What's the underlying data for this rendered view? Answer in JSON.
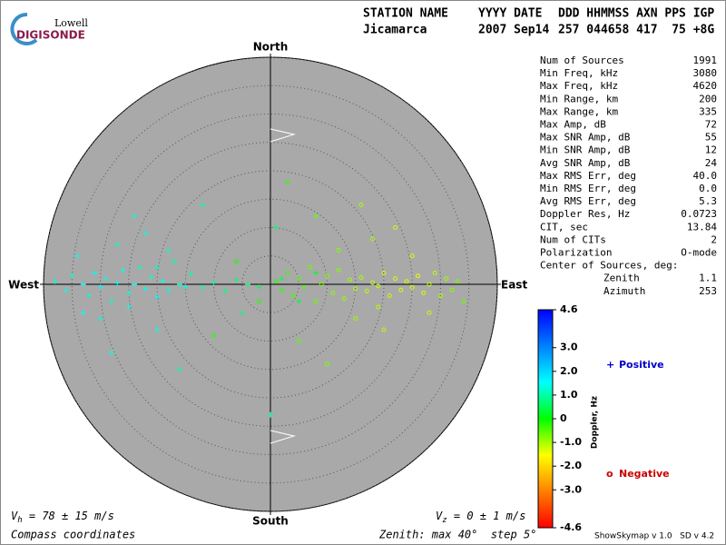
{
  "logo": {
    "top": "Lowell",
    "bottom": "DIGISONDE"
  },
  "header": {
    "labels": [
      "STATION NAME",
      "YYYY DATE",
      "DDD HHMMSS AXN PPS IGP"
    ],
    "values": [
      "Jicamarca",
      "2007 Sep14",
      "257 044658 417  75 +8G"
    ]
  },
  "stats": [
    {
      "label": "Num of Sources",
      "value": "1991"
    },
    {
      "label": "Min Freq, kHz",
      "value": "3080"
    },
    {
      "label": "Max Freq, kHz",
      "value": "4620"
    },
    {
      "label": "Min Range, km",
      "value": "200"
    },
    {
      "label": "Max Range, km",
      "value": "335"
    },
    {
      "label": "Max Amp, dB",
      "value": "72"
    },
    {
      "label": "Max SNR Amp, dB",
      "value": "55"
    },
    {
      "label": "Min SNR Amp, dB",
      "value": "12"
    },
    {
      "label": "Avg SNR Amp, dB",
      "value": "24"
    },
    {
      "label": "Max RMS Err, deg",
      "value": "40.0"
    },
    {
      "label": "Min RMS Err, deg",
      "value": "0.0"
    },
    {
      "label": "Avg RMS Err, deg",
      "value": "5.3"
    },
    {
      "label": "Doppler Res, Hz",
      "value": "0.0723"
    },
    {
      "label": "CIT, sec",
      "value": "13.84"
    },
    {
      "label": "Num of CITs",
      "value": "2"
    },
    {
      "label": "Polarization",
      "value": "O-mode"
    },
    {
      "label": "Center of Sources, deg:"
    },
    {
      "label": "Zenith",
      "value": "1.1",
      "indent": true
    },
    {
      "label": "Azimuth",
      "value": "253",
      "indent": true
    }
  ],
  "footer": {
    "vh": {
      "symbol": "V",
      "sub": "h",
      "text": " = 78 ± 15 m/s"
    },
    "vz": {
      "symbol": "V",
      "sub": "z",
      "text": " = 0 ± 1 m/s"
    },
    "coords": "Compass coordinates",
    "zenith": "Zenith: max 40°  step 5°",
    "version": "ShowSkymap v 1.0   SD v 4.2"
  },
  "chart_data": {
    "type": "scatter",
    "compass": {
      "north": "North",
      "south": "South",
      "east": "East",
      "west": "West"
    },
    "rlim": [
      0,
      40
    ],
    "rticks": [
      5,
      10,
      15,
      20,
      25,
      30,
      35,
      40
    ],
    "colorbar": {
      "label": "Doppler, Hz",
      "clim": [
        -4.6,
        4.6
      ],
      "colormap": [
        "#ff0000",
        "#ff8000",
        "#ffff00",
        "#00ff00",
        "#00ffff",
        "#0080ff",
        "#0000ff"
      ],
      "ticks": [
        4.6,
        {
          "value": 3,
          "label": "3.0"
        },
        {
          "value": 2,
          "label": "2.0"
        },
        {
          "value": 1,
          "label": "1.0"
        },
        0,
        {
          "value": -1,
          "label": "-1.0"
        },
        {
          "value": -2,
          "label": "-2.0"
        },
        {
          "value": -3,
          "label": "-3.0"
        },
        -4.6
      ]
    },
    "series": [
      {
        "name": "Positive",
        "color": "#0000cc",
        "marker": "+",
        "x": [
          -38,
          -36,
          -35,
          -33,
          -32,
          -31,
          -30,
          -29,
          -28,
          -27,
          -26,
          -25,
          -24,
          -23,
          -22,
          -21,
          -20,
          -19,
          -18,
          -17,
          -16,
          -15,
          -14,
          -12,
          -10,
          -8,
          -6,
          -4,
          -2,
          2,
          5,
          8,
          -34,
          -30,
          -27,
          -25,
          -22,
          -20,
          -18,
          -24,
          -28,
          -33,
          -12,
          -16,
          -20,
          1,
          0,
          -5
        ],
        "y": [
          0.5,
          -1,
          1.5,
          0,
          -2,
          2,
          -0.5,
          1,
          -3,
          0.2,
          2.5,
          -1.5,
          0,
          3,
          -0.8,
          1.2,
          -2.2,
          0.6,
          -1,
          4,
          0,
          -0.4,
          1.8,
          -0.6,
          0.3,
          -1.2,
          0.8,
          0,
          -0.5,
          1,
          -3,
          2,
          5,
          -6,
          7,
          -4,
          9,
          -8,
          6,
          12,
          -12,
          -5,
          14,
          -15,
          3,
          10,
          -23,
          -5
        ],
        "doppler": [
          1.3,
          1.4,
          1.2,
          1.5,
          1.3,
          1.4,
          1.6,
          1.3,
          1.2,
          1.5,
          1.4,
          1.3,
          1.5,
          1.2,
          1.4,
          1.3,
          1.6,
          1.4,
          1.3,
          1.1,
          1.2,
          1.3,
          1.0,
          1.1,
          0.9,
          0.8,
          0.7,
          0.6,
          0.5,
          0.4,
          0.3,
          0.2,
          1.4,
          1.3,
          1.2,
          1.5,
          1.3,
          1.4,
          1.2,
          1.3,
          1.4,
          1.5,
          1.0,
          1.1,
          1.2,
          0.6,
          0.9,
          0.8
        ]
      },
      {
        "name": "Negative",
        "color": "#cc0000",
        "marker": "o",
        "x": [
          1,
          2,
          3,
          4,
          5,
          6,
          7,
          8,
          9,
          10,
          11,
          12,
          13,
          14,
          15,
          16,
          17,
          18,
          19,
          20,
          21,
          22,
          23,
          24,
          25,
          26,
          27,
          28,
          29,
          30,
          31,
          32,
          33,
          34,
          12,
          15,
          18,
          20,
          22,
          8,
          5,
          25,
          28,
          10,
          16,
          19,
          3,
          -2,
          -6,
          -10
        ],
        "y": [
          0.5,
          -1,
          2,
          -2,
          1,
          -0.5,
          3,
          -3,
          0,
          1.5,
          -1.5,
          2.5,
          -2.5,
          0.8,
          -0.8,
          1.2,
          -1.2,
          0.3,
          -0.3,
          2,
          -2,
          1,
          -1,
          0.5,
          -0.5,
          1.5,
          -1.5,
          0,
          2,
          -2,
          1,
          -1,
          0.5,
          -3,
          6,
          -6,
          8,
          -8,
          10,
          12,
          -10,
          5,
          -5,
          -14,
          14,
          -4,
          18,
          -3,
          4,
          -9
        ],
        "doppler": [
          -0.2,
          -0.3,
          -0.3,
          -0.4,
          -0.5,
          -0.5,
          -0.6,
          -0.6,
          -0.7,
          -0.7,
          -0.8,
          -0.8,
          -0.9,
          -0.9,
          -1.0,
          -1.0,
          -1.1,
          -1.1,
          -1.2,
          -1.2,
          -1.2,
          -1.3,
          -1.3,
          -1.3,
          -1.4,
          -1.4,
          -1.3,
          -1.2,
          -1.1,
          -1.0,
          -0.9,
          -0.8,
          -0.7,
          -0.6,
          -0.8,
          -0.9,
          -1.0,
          -1.1,
          -1.2,
          -0.6,
          -0.5,
          -1.3,
          -1.2,
          -0.7,
          -1.0,
          -1.1,
          -0.3,
          -0.2,
          -0.1,
          -0.2
        ]
      }
    ]
  }
}
